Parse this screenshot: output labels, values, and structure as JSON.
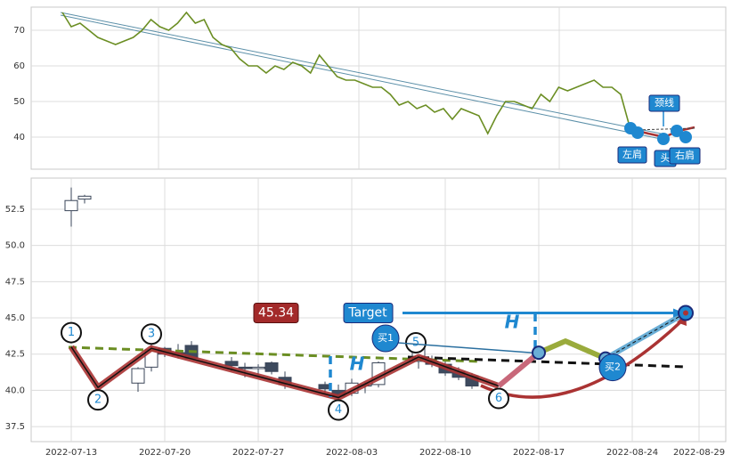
{
  "chart_data": [
    {
      "type": "line",
      "color": "#6b8e23",
      "values": [
        75,
        71,
        72,
        70,
        68,
        67,
        66,
        67,
        68,
        70,
        73,
        71,
        70,
        72,
        75,
        72,
        73,
        68,
        66,
        65,
        62,
        60,
        60,
        58,
        60,
        59,
        61,
        60,
        58,
        63,
        60,
        57,
        56,
        56,
        55,
        54,
        54,
        52,
        49,
        50,
        48,
        49,
        47,
        48,
        45,
        48,
        47,
        46,
        41,
        46,
        50,
        50,
        49,
        48,
        52,
        50,
        54,
        53,
        54,
        55,
        56,
        54,
        54,
        52,
        43
      ],
      "ylim": [
        31,
        76.5
      ],
      "yticks": [
        40,
        50,
        60,
        70
      ],
      "grid": true,
      "annotations": [
        "左肩",
        "头",
        "右肩",
        "颈线"
      ]
    },
    {
      "type": "candlestick",
      "x": [
        "2022-07-13",
        "2022-07-14",
        "2022-07-18",
        "2022-07-19",
        "2022-07-20",
        "2022-07-21",
        "2022-07-22",
        "2022-07-25",
        "2022-07-26",
        "2022-07-27",
        "2022-07-28",
        "2022-07-29",
        "2022-08-01",
        "2022-08-02",
        "2022-08-03",
        "2022-08-04",
        "2022-08-05",
        "2022-08-08",
        "2022-08-09",
        "2022-08-10",
        "2022-08-11",
        "2022-08-12"
      ],
      "open": [
        52.4,
        53.2,
        40.5,
        41.6,
        42.9,
        42.6,
        43.1,
        42.0,
        41.6,
        41.5,
        41.9,
        40.9,
        40.4,
        40.0,
        39.8,
        40.3,
        40.4,
        42.0,
        42.0,
        41.8,
        41.3,
        41.0
      ],
      "high": [
        54.0,
        53.5,
        41.6,
        43.2,
        43.0,
        43.2,
        43.4,
        42.3,
        41.9,
        41.8,
        42.0,
        41.3,
        40.6,
        40.4,
        40.8,
        40.6,
        42.0,
        43.3,
        42.4,
        42.1,
        41.6,
        41.2
      ],
      "low": [
        51.3,
        52.9,
        39.9,
        41.3,
        42.3,
        42.2,
        42.2,
        41.3,
        40.9,
        41.0,
        41.1,
        40.1,
        39.7,
        39.0,
        39.6,
        39.8,
        40.2,
        41.5,
        41.6,
        41.0,
        40.7,
        40.1
      ],
      "close": [
        53.1,
        53.4,
        41.5,
        42.8,
        42.5,
        42.4,
        42.2,
        41.7,
        41.5,
        41.6,
        41.3,
        40.4,
        40.1,
        39.6,
        40.5,
        40.4,
        41.9,
        42.9,
        41.8,
        41.2,
        40.9,
        40.3
      ],
      "xlim": [
        "2022-07-10",
        "2022-08-31"
      ],
      "xticks": [
        "2022-07-13",
        "2022-07-20",
        "2022-07-27",
        "2022-08-03",
        "2022-08-10",
        "2022-08-17",
        "2022-08-24",
        "2022-08-29"
      ],
      "ylim": [
        36.46,
        54.65
      ],
      "yticks": [
        37.5,
        {
          "value": 40,
          "label": "40.0"
        },
        42.5,
        {
          "value": 45,
          "label": "45.0"
        },
        47.5,
        {
          "value": 50,
          "label": "50.0"
        },
        52.5
      ],
      "grid": true,
      "pattern_points": [
        {
          "label": "1",
          "x": "2022-07-13",
          "value": 43.0
        },
        {
          "label": "2",
          "x": "2022-07-15",
          "value": 40.2
        },
        {
          "label": "3",
          "x": "2022-07-19",
          "value": 42.9
        },
        {
          "label": "4",
          "x": "2022-08-02",
          "value": 39.5
        },
        {
          "label": "5",
          "x": "2022-08-08",
          "value": 42.3
        },
        {
          "label": "6",
          "x": "2022-08-14",
          "value": 40.3
        }
      ],
      "buy_points": [
        {
          "label": "买1",
          "x": "2022-08-17",
          "value": 42.6
        },
        {
          "label": "买2",
          "x": "2022-08-22",
          "value": 42.2
        }
      ],
      "peak": {
        "x": "2022-08-19",
        "value": 43.4
      },
      "target": {
        "text": "Target",
        "value": 45.34,
        "label": "45.34",
        "x": "2022-08-28"
      },
      "height_label": "H"
    }
  ]
}
